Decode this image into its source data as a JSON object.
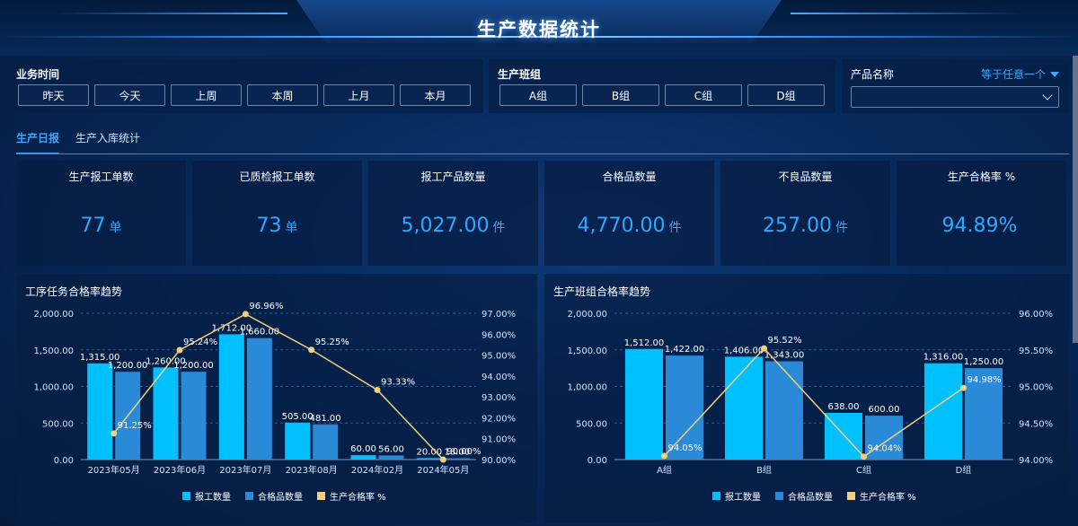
{
  "header": {
    "title": "生产数据统计"
  },
  "filters": {
    "time": {
      "label": "业务时间",
      "buttons": [
        "昨天",
        "今天",
        "上周",
        "本周",
        "上月",
        "本月"
      ]
    },
    "team": {
      "label": "生产班组",
      "buttons": [
        "A组",
        "B组",
        "C组",
        "D组"
      ]
    },
    "product": {
      "label": "产品名称",
      "mode": "等于任意一个",
      "value": ""
    }
  },
  "tabs": [
    {
      "label": "生产日报",
      "active": true
    },
    {
      "label": "生产入库统计",
      "active": false
    }
  ],
  "kpis": [
    {
      "title": "生产报工单数",
      "value": "77",
      "unit": "单"
    },
    {
      "title": "已质检报工单数",
      "value": "73",
      "unit": "单"
    },
    {
      "title": "报工产品数量",
      "value": "5,027.00",
      "unit": "件"
    },
    {
      "title": "合格品数量",
      "value": "4,770.00",
      "unit": "件"
    },
    {
      "title": "不良品数量",
      "value": "257.00",
      "unit": "件"
    },
    {
      "title": "生产合格率 %",
      "value": "94.89%",
      "unit": ""
    }
  ],
  "colors": {
    "bar1": "#00c0ff",
    "bar2": "#2a8ad8",
    "line": "#f2cf7a",
    "accent": "#2fa8ff"
  },
  "chart_data": [
    {
      "type": "bar",
      "title": "工序任务合格率趋势",
      "categories": [
        "2023年05月",
        "2023年06月",
        "2023年07月",
        "2023年08月",
        "2024年02月",
        "2024年05月"
      ],
      "series": [
        {
          "name": "报工数量",
          "kind": "bar",
          "values": [
            1315,
            1260,
            1712,
            505,
            60,
            20
          ],
          "labels": [
            "1,315.00",
            "1,260.00",
            "1,712.00",
            "505.00",
            "60.00",
            "20.00"
          ]
        },
        {
          "name": "合格品数量",
          "kind": "bar",
          "values": [
            1200,
            1200,
            1660,
            481,
            56,
            18
          ],
          "labels": [
            "1,200.00",
            "1,200.00",
            "1,660.00",
            "481.00",
            "56.00",
            "18.00"
          ]
        },
        {
          "name": "生产合格率 %",
          "kind": "line",
          "values": [
            91.25,
            95.24,
            96.96,
            95.25,
            93.33,
            90.0
          ],
          "labels": [
            "91.25%",
            "95.24%",
            "96.96%",
            "95.25%",
            "93.33%",
            "90.00%"
          ]
        }
      ],
      "ylim": [
        0,
        2000
      ],
      "yticks": [
        "0.00",
        "500.00",
        "1,000.00",
        "1,500.00",
        "2,000.00"
      ],
      "y2lim": [
        90,
        97
      ],
      "y2ticks": [
        "90.00%",
        "91.00%",
        "92.00%",
        "93.00%",
        "94.00%",
        "95.00%",
        "96.00%",
        "97.00%"
      ],
      "legend": [
        "报工数量",
        "合格品数量",
        "生产合格率 %"
      ],
      "legend_position": "bottom",
      "grid": true
    },
    {
      "type": "bar",
      "title": "生产班组合格率趋势",
      "categories": [
        "A组",
        "B组",
        "C组",
        "D组"
      ],
      "series": [
        {
          "name": "报工数量",
          "kind": "bar",
          "values": [
            1512,
            1406,
            638,
            1316
          ],
          "labels": [
            "1,512.00",
            "1,406.00",
            "638.00",
            "1,316.00"
          ]
        },
        {
          "name": "合格品数量",
          "kind": "bar",
          "values": [
            1422,
            1343,
            600,
            1250
          ],
          "labels": [
            "1,422.00",
            "1,343.00",
            "600.00",
            "1,250.00"
          ]
        },
        {
          "name": "生产合格率 %",
          "kind": "line",
          "values": [
            94.05,
            95.52,
            94.04,
            94.98
          ],
          "labels": [
            "94.05%",
            "95.52%",
            "94.04%",
            "94.98%"
          ]
        }
      ],
      "ylim": [
        0,
        2000
      ],
      "yticks": [
        "0.00",
        "500.00",
        "1,000.00",
        "1,500.00",
        "2,000.00"
      ],
      "y2lim": [
        94,
        96
      ],
      "y2ticks": [
        "94.00%",
        "94.50%",
        "95.00%",
        "95.50%",
        "96.00%"
      ],
      "legend": [
        "报工数量",
        "合格品数量",
        "生产合格率 %"
      ],
      "legend_position": "bottom",
      "grid": true
    }
  ]
}
